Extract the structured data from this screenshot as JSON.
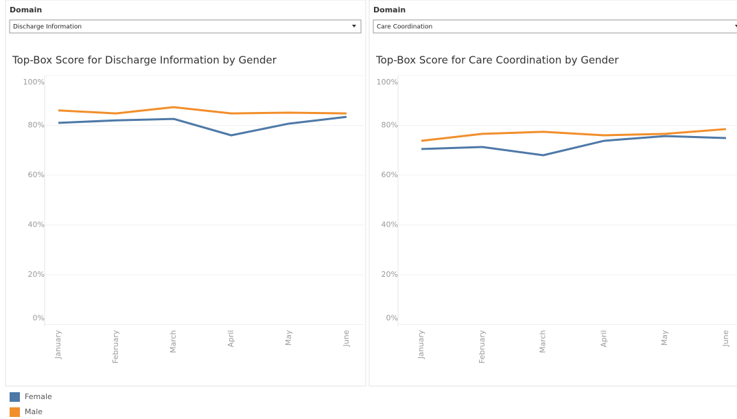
{
  "filters": [
    {
      "label": "Domain",
      "value": "Discharge Information"
    },
    {
      "label": "Domain",
      "value": "Care Coordination"
    }
  ],
  "chart_data": [
    {
      "type": "line",
      "title": "Top-Box Score for Discharge Information by Gender",
      "categories": [
        "January",
        "February",
        "March",
        "April",
        "May",
        "June"
      ],
      "series": [
        {
          "name": "Female",
          "color": "#4e79a7",
          "values": [
            81,
            82,
            82.6,
            76,
            80.7,
            83.4
          ]
        },
        {
          "name": "Male",
          "color": "#f28e2b",
          "values": [
            86,
            84.8,
            87.3,
            84.8,
            85.1,
            84.8
          ]
        }
      ],
      "ylim": [
        0,
        100
      ],
      "yticks": [
        {
          "value": 0,
          "label": "0%"
        },
        {
          "value": 20,
          "label": "20%"
        },
        {
          "value": 40,
          "label": "40%"
        },
        {
          "value": 60,
          "label": "60%"
        },
        {
          "value": 80,
          "label": "80%"
        },
        {
          "value": 100,
          "label": "100%"
        }
      ],
      "grid": true
    },
    {
      "type": "line",
      "title": "Top-Box Score for Care Coordination by Gender",
      "categories": [
        "January",
        "February",
        "March",
        "April",
        "May",
        "June"
      ],
      "series": [
        {
          "name": "Female",
          "color": "#4e79a7",
          "values": [
            70.5,
            71.3,
            68,
            73.8,
            75.7,
            74.9
          ]
        },
        {
          "name": "Male",
          "color": "#f28e2b",
          "values": [
            73.8,
            76.6,
            77.4,
            76,
            76.6,
            78.5
          ]
        }
      ],
      "ylim": [
        0,
        100
      ],
      "yticks": [
        {
          "value": 0,
          "label": "0%"
        },
        {
          "value": 20,
          "label": "20%"
        },
        {
          "value": 40,
          "label": "40%"
        },
        {
          "value": 60,
          "label": "60%"
        },
        {
          "value": 80,
          "label": "80%"
        },
        {
          "value": 100,
          "label": "100%"
        }
      ],
      "grid": true
    }
  ]
}
